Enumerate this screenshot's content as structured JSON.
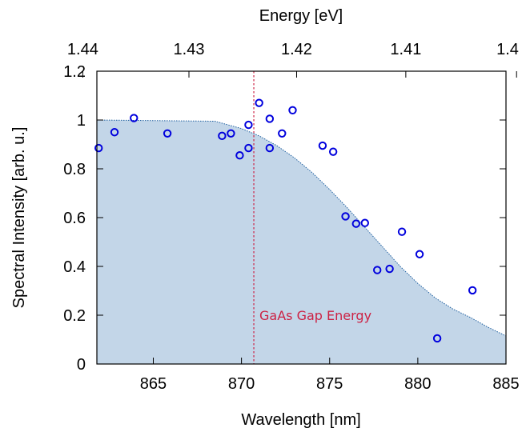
{
  "chart_data": {
    "type": "scatter",
    "xlabel": "Wavelength [nm]",
    "ylabel": "Spectral Intensity [arb. u.]",
    "x2label": "Energy [eV]",
    "xlim": [
      861.8,
      885
    ],
    "ylim": [
      0,
      1.2
    ],
    "x_ticks": [
      865,
      870,
      875,
      880,
      885
    ],
    "y_ticks": [
      0,
      0.2,
      0.4,
      0.6,
      0.8,
      1,
      1.2
    ],
    "x2_ticks": [
      1.44,
      1.43,
      1.42,
      1.41,
      1.4
    ],
    "x2_conversion_constant_eVnm": 1239.84,
    "grid": false,
    "series": [
      {
        "kind": "scatter",
        "marker": "open-circle",
        "color": "#0000dd",
        "x": [
          861.9,
          862.8,
          863.9,
          865.8,
          868.9,
          869.4,
          869.9,
          870.4,
          870.4,
          871.0,
          871.6,
          871.6,
          872.3,
          872.9,
          874.6,
          875.2,
          875.9,
          876.5,
          877.0,
          877.7,
          878.4,
          879.1,
          880.1,
          881.1,
          883.1
        ],
        "y": [
          0.885,
          0.95,
          1.008,
          0.945,
          0.935,
          0.945,
          0.855,
          0.98,
          0.885,
          1.07,
          1.005,
          0.885,
          0.945,
          1.04,
          0.895,
          0.87,
          0.605,
          0.575,
          0.578,
          0.385,
          0.39,
          0.542,
          0.45,
          0.105,
          0.302
        ]
      },
      {
        "kind": "area",
        "fill": "#c3d6e8",
        "edge": "#1f5f9f",
        "x": [
          861.8,
          868.5,
          869.0,
          870.0,
          871.0,
          872.0,
          873.0,
          874.0,
          875.0,
          876.0,
          877.0,
          878.0,
          879.0,
          880.0,
          881.0,
          882.0,
          883.0,
          884.0,
          885.0
        ],
        "y": [
          1.0,
          0.995,
          0.985,
          0.965,
          0.935,
          0.895,
          0.845,
          0.785,
          0.715,
          0.64,
          0.56,
          0.48,
          0.4,
          0.33,
          0.27,
          0.225,
          0.19,
          0.15,
          0.115
        ]
      }
    ],
    "annotations": [
      {
        "text": "GaAs Gap Energy",
        "x": 870.7,
        "color": "#cc2244",
        "style": "vertical-dotted-line"
      }
    ]
  }
}
